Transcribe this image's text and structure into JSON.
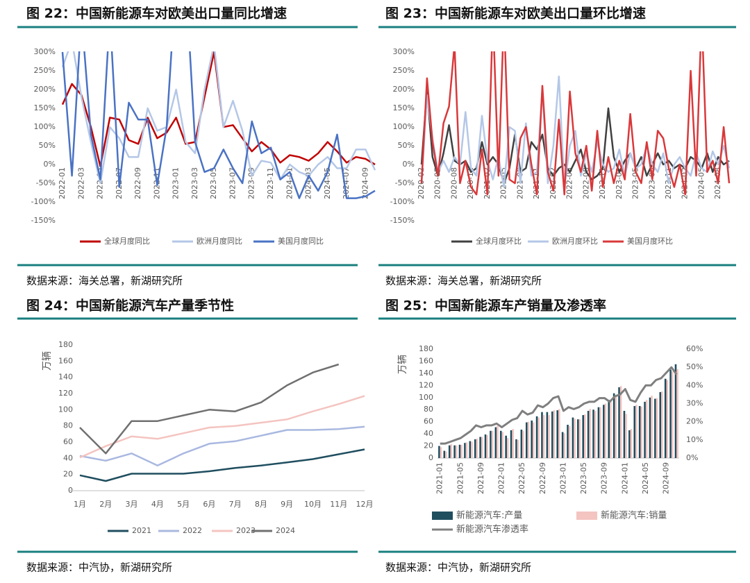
{
  "chart_data": [
    {
      "type": "line",
      "title": "图 22：中国新能源车对欧美出口量同比增速",
      "source": "数据来源：海关总署，新湖研究所",
      "categories": [
        "2022-01",
        null,
        "2022-03",
        null,
        "2022-05",
        null,
        "2022-07",
        null,
        "2022-09",
        null,
        "2022-11",
        null,
        "2023-01",
        null,
        "2023-03",
        null,
        "2023-05",
        null,
        "2023-07",
        null,
        "2023-09",
        null,
        "2023-11",
        null,
        "2024-01",
        null,
        "2024-03",
        null,
        "2024-05",
        null,
        "2024-07",
        null,
        "2024-09",
        null
      ],
      "ylim": [
        -150,
        300
      ],
      "yticks": [
        {
          "value": -150,
          "label": "-150%"
        },
        {
          "value": -100,
          "label": "-100%"
        },
        {
          "value": -50,
          "label": "-50%"
        },
        {
          "value": 0,
          "label": "0%"
        },
        {
          "value": 50,
          "label": "50%"
        },
        {
          "value": 100,
          "label": "100%"
        },
        {
          "value": 150,
          "label": "150%"
        },
        {
          "value": 200,
          "label": "200%"
        },
        {
          "value": 250,
          "label": "250%"
        },
        {
          "value": 300,
          "label": "300%"
        }
      ],
      "series": [
        {
          "name": "全球月度同比",
          "color": "#c00000",
          "values": [
            160,
            215,
            185,
            100,
            -5,
            125,
            120,
            65,
            55,
            125,
            70,
            85,
            125,
            55,
            60,
            180,
            300,
            100,
            105,
            70,
            35,
            60,
            40,
            5,
            25,
            20,
            10,
            30,
            60,
            35,
            5,
            20,
            15,
            0
          ]
        },
        {
          "name": "欧洲月度同比",
          "color": "#b4c7e7",
          "values": [
            260,
            330,
            180,
            60,
            -50,
            100,
            70,
            20,
            20,
            150,
            90,
            100,
            200,
            60,
            30,
            200,
            320,
            100,
            170,
            90,
            -30,
            10,
            5,
            -40,
            0,
            -20,
            -30,
            0,
            20,
            -10,
            -10,
            40,
            40,
            -15
          ]
        },
        {
          "name": "美国月度同比",
          "color": "#4a72c4",
          "values": [
            300,
            -30,
            400,
            80,
            -40,
            400,
            -60,
            165,
            120,
            120,
            -55,
            100,
            500,
            500,
            60,
            -20,
            -10,
            40,
            -10,
            -50,
            115,
            30,
            45,
            -40,
            -20,
            -90,
            -30,
            -70,
            -20,
            80,
            -90,
            -90,
            -85,
            -70
          ]
        }
      ]
    },
    {
      "type": "line",
      "title": "图 23：中国新能源车对欧美出口量环比增速",
      "source": "数据来源：海关总署，新湖研究所",
      "categories": [
        "2020-02",
        null,
        null,
        "2020-05",
        null,
        null,
        "2020-08",
        null,
        null,
        "2020-11",
        null,
        null,
        "2021-02",
        null,
        null,
        "2021-05",
        null,
        null,
        "2021-08",
        null,
        null,
        "2021-11",
        null,
        null,
        "2022-02",
        null,
        null,
        "2022-05",
        null,
        null,
        "2022-08",
        null,
        null,
        "2022-11",
        null,
        null,
        "2023-02",
        null,
        null,
        "2023-05",
        null,
        null,
        "2023-08",
        null,
        null,
        "2023-11",
        null,
        null,
        "2024-02",
        null,
        null,
        "2024-05",
        null,
        null,
        "2024-08",
        null,
        null
      ],
      "ylim": [
        -150,
        300
      ],
      "yticks": [
        {
          "value": -150,
          "label": "-150%"
        },
        {
          "value": -100,
          "label": "-100%"
        },
        {
          "value": -50,
          "label": "-50%"
        },
        {
          "value": 0,
          "label": "0%"
        },
        {
          "value": 50,
          "label": "50%"
        },
        {
          "value": 100,
          "label": "100%"
        },
        {
          "value": 150,
          "label": "150%"
        },
        {
          "value": 200,
          "label": "200%"
        },
        {
          "value": 250,
          "label": "250%"
        },
        {
          "value": 300,
          "label": "300%"
        }
      ],
      "series": [
        {
          "name": "全球月度环比",
          "color": "#404040",
          "values": [
            0,
            200,
            20,
            -30,
            30,
            105,
            10,
            0,
            10,
            -20,
            -10,
            60,
            0,
            20,
            0,
            -50,
            -10,
            80,
            -20,
            -10,
            60,
            40,
            80,
            -10,
            -30,
            -10,
            0,
            -20,
            10,
            40,
            -20,
            -40,
            -30,
            -10,
            150,
            20,
            -20,
            10,
            30,
            -10,
            20,
            -30,
            0,
            30,
            0,
            10,
            -10,
            0,
            -10,
            20,
            10,
            -10,
            30,
            -20,
            20,
            0,
            10
          ]
        },
        {
          "name": "欧洲月度环比",
          "color": "#b4c7e7",
          "values": [
            -50,
            185,
            70,
            -20,
            10,
            -20,
            20,
            0,
            140,
            -10,
            -30,
            130,
            10,
            -40,
            20,
            -60,
            100,
            90,
            -50,
            110,
            -30,
            -20,
            200,
            -50,
            50,
            235,
            -60,
            50,
            90,
            -30,
            30,
            -20,
            60,
            0,
            -20,
            -10,
            40,
            -30,
            30,
            -10,
            0,
            50,
            0,
            -20,
            30,
            -50,
            0,
            20,
            -10,
            -30,
            30,
            -10,
            -20,
            35,
            0,
            50,
            -10
          ]
        },
        {
          "name": "美国月度环比",
          "color": "#d9383a",
          "values": [
            -50,
            230,
            60,
            -30,
            110,
            155,
            320,
            -50,
            10,
            -60,
            -80,
            40,
            -80,
            400,
            -30,
            400,
            -40,
            -50,
            70,
            100,
            0,
            -80,
            210,
            -20,
            -70,
            120,
            -80,
            195,
            30,
            -20,
            50,
            -70,
            90,
            -60,
            20,
            -50,
            10,
            -40,
            135,
            -20,
            -50,
            60,
            -40,
            90,
            70,
            -10,
            -60,
            0,
            -80,
            250,
            -30,
            400,
            -20,
            10,
            -50,
            100,
            -50
          ]
        }
      ]
    },
    {
      "type": "line",
      "title": "图 24：中国新能源汽车产量季节性",
      "source": "数据来源：中汽协，新湖研究所",
      "ylabel": "万辆",
      "categories": [
        "1月",
        "2月",
        "3月",
        "4月",
        "5月",
        "6月",
        "7月",
        "8月",
        "9月",
        "10月",
        "11月",
        "12月"
      ],
      "ylim": [
        0,
        180
      ],
      "yticks": [
        0,
        20,
        40,
        60,
        80,
        100,
        120,
        140,
        160,
        180
      ],
      "series": [
        {
          "name": "2021",
          "color": "#1f4e5f",
          "values": [
            19,
            12,
            21,
            21,
            21,
            24,
            28,
            31,
            35,
            39,
            45,
            51
          ]
        },
        {
          "name": "2022",
          "color": "#a9b8e0",
          "values": [
            43,
            37,
            46,
            31,
            46,
            58,
            61,
            68,
            75,
            75,
            76,
            79
          ]
        },
        {
          "name": "2023",
          "color": "#f4c4c0",
          "values": [
            41,
            55,
            67,
            64,
            71,
            78,
            80,
            84,
            88,
            98,
            107,
            117
          ]
        },
        {
          "name": "2024",
          "color": "#707070",
          "values": [
            78,
            46,
            86,
            86,
            93,
            100,
            98,
            109,
            130,
            146,
            156,
            null
          ]
        }
      ]
    },
    {
      "type": "bar",
      "title": "图 25：中国新能源车产销量及渗透率",
      "source": "数据来源：中汽协，新湖研究所",
      "ylabel": "万辆",
      "categories": [
        "2021-01",
        null,
        null,
        null,
        "2021-05",
        null,
        null,
        null,
        "2021-09",
        null,
        null,
        null,
        "2022-01",
        null,
        null,
        null,
        "2022-05",
        null,
        null,
        null,
        "2022-09",
        null,
        null,
        null,
        "2023-01",
        null,
        null,
        null,
        "2023-05",
        null,
        null,
        null,
        "2023-09",
        null,
        null,
        null,
        "2024-01",
        null,
        null,
        null,
        "2024-05",
        null,
        null,
        null,
        "2024-09",
        null,
        null
      ],
      "ylim": [
        0,
        180
      ],
      "yticks": [
        0,
        20,
        40,
        60,
        80,
        100,
        120,
        140,
        160,
        180
      ],
      "y2lim": [
        0,
        60
      ],
      "y2ticks": [
        {
          "value": 0,
          "label": "0%"
        },
        {
          "value": 10,
          "label": "10%"
        },
        {
          "value": 20,
          "label": "20%"
        },
        {
          "value": 30,
          "label": "30%"
        },
        {
          "value": 40,
          "label": "40%"
        },
        {
          "value": 50,
          "label": "50%"
        },
        {
          "value": 60,
          "label": "60%"
        }
      ],
      "series": [
        {
          "name": "新能源汽车:产量",
          "type": "bar",
          "color": "#1f4e5f",
          "values": [
            20,
            12,
            21,
            21,
            22,
            25,
            28,
            31,
            35,
            39,
            45,
            51,
            45,
            37,
            46,
            31,
            47,
            59,
            62,
            69,
            76,
            76,
            77,
            79,
            43,
            55,
            67,
            64,
            71,
            78,
            80,
            84,
            88,
            96,
            107,
            117,
            78,
            46,
            86,
            86,
            93,
            100,
            98,
            109,
            131,
            146,
            155
          ]
        },
        {
          "name": "新能源汽车:销量",
          "type": "bar",
          "color": "#f4c4c0",
          "values": [
            18,
            11,
            23,
            21,
            22,
            26,
            27,
            32,
            35,
            38,
            45,
            53,
            43,
            33,
            48,
            30,
            45,
            60,
            59,
            67,
            71,
            71,
            79,
            81,
            41,
            53,
            65,
            64,
            72,
            81,
            78,
            84,
            90,
            96,
            102,
            119,
            73,
            48,
            88,
            85,
            96,
            103,
            99,
            110,
            129,
            143,
            147
          ]
        },
        {
          "name": "新能源汽车渗透率",
          "type": "line",
          "axis": "y2",
          "color": "#7f7f7f",
          "values": [
            8,
            8,
            9,
            10,
            11,
            13,
            15,
            18,
            17,
            18,
            18,
            19,
            17,
            19,
            21,
            22,
            26,
            24,
            25,
            29,
            28,
            30,
            33,
            34,
            26,
            28,
            27,
            28,
            30,
            31,
            31,
            33,
            33,
            31,
            34,
            35,
            38,
            32,
            31,
            36,
            40,
            40,
            43,
            44,
            47,
            50,
            46
          ]
        }
      ]
    }
  ]
}
